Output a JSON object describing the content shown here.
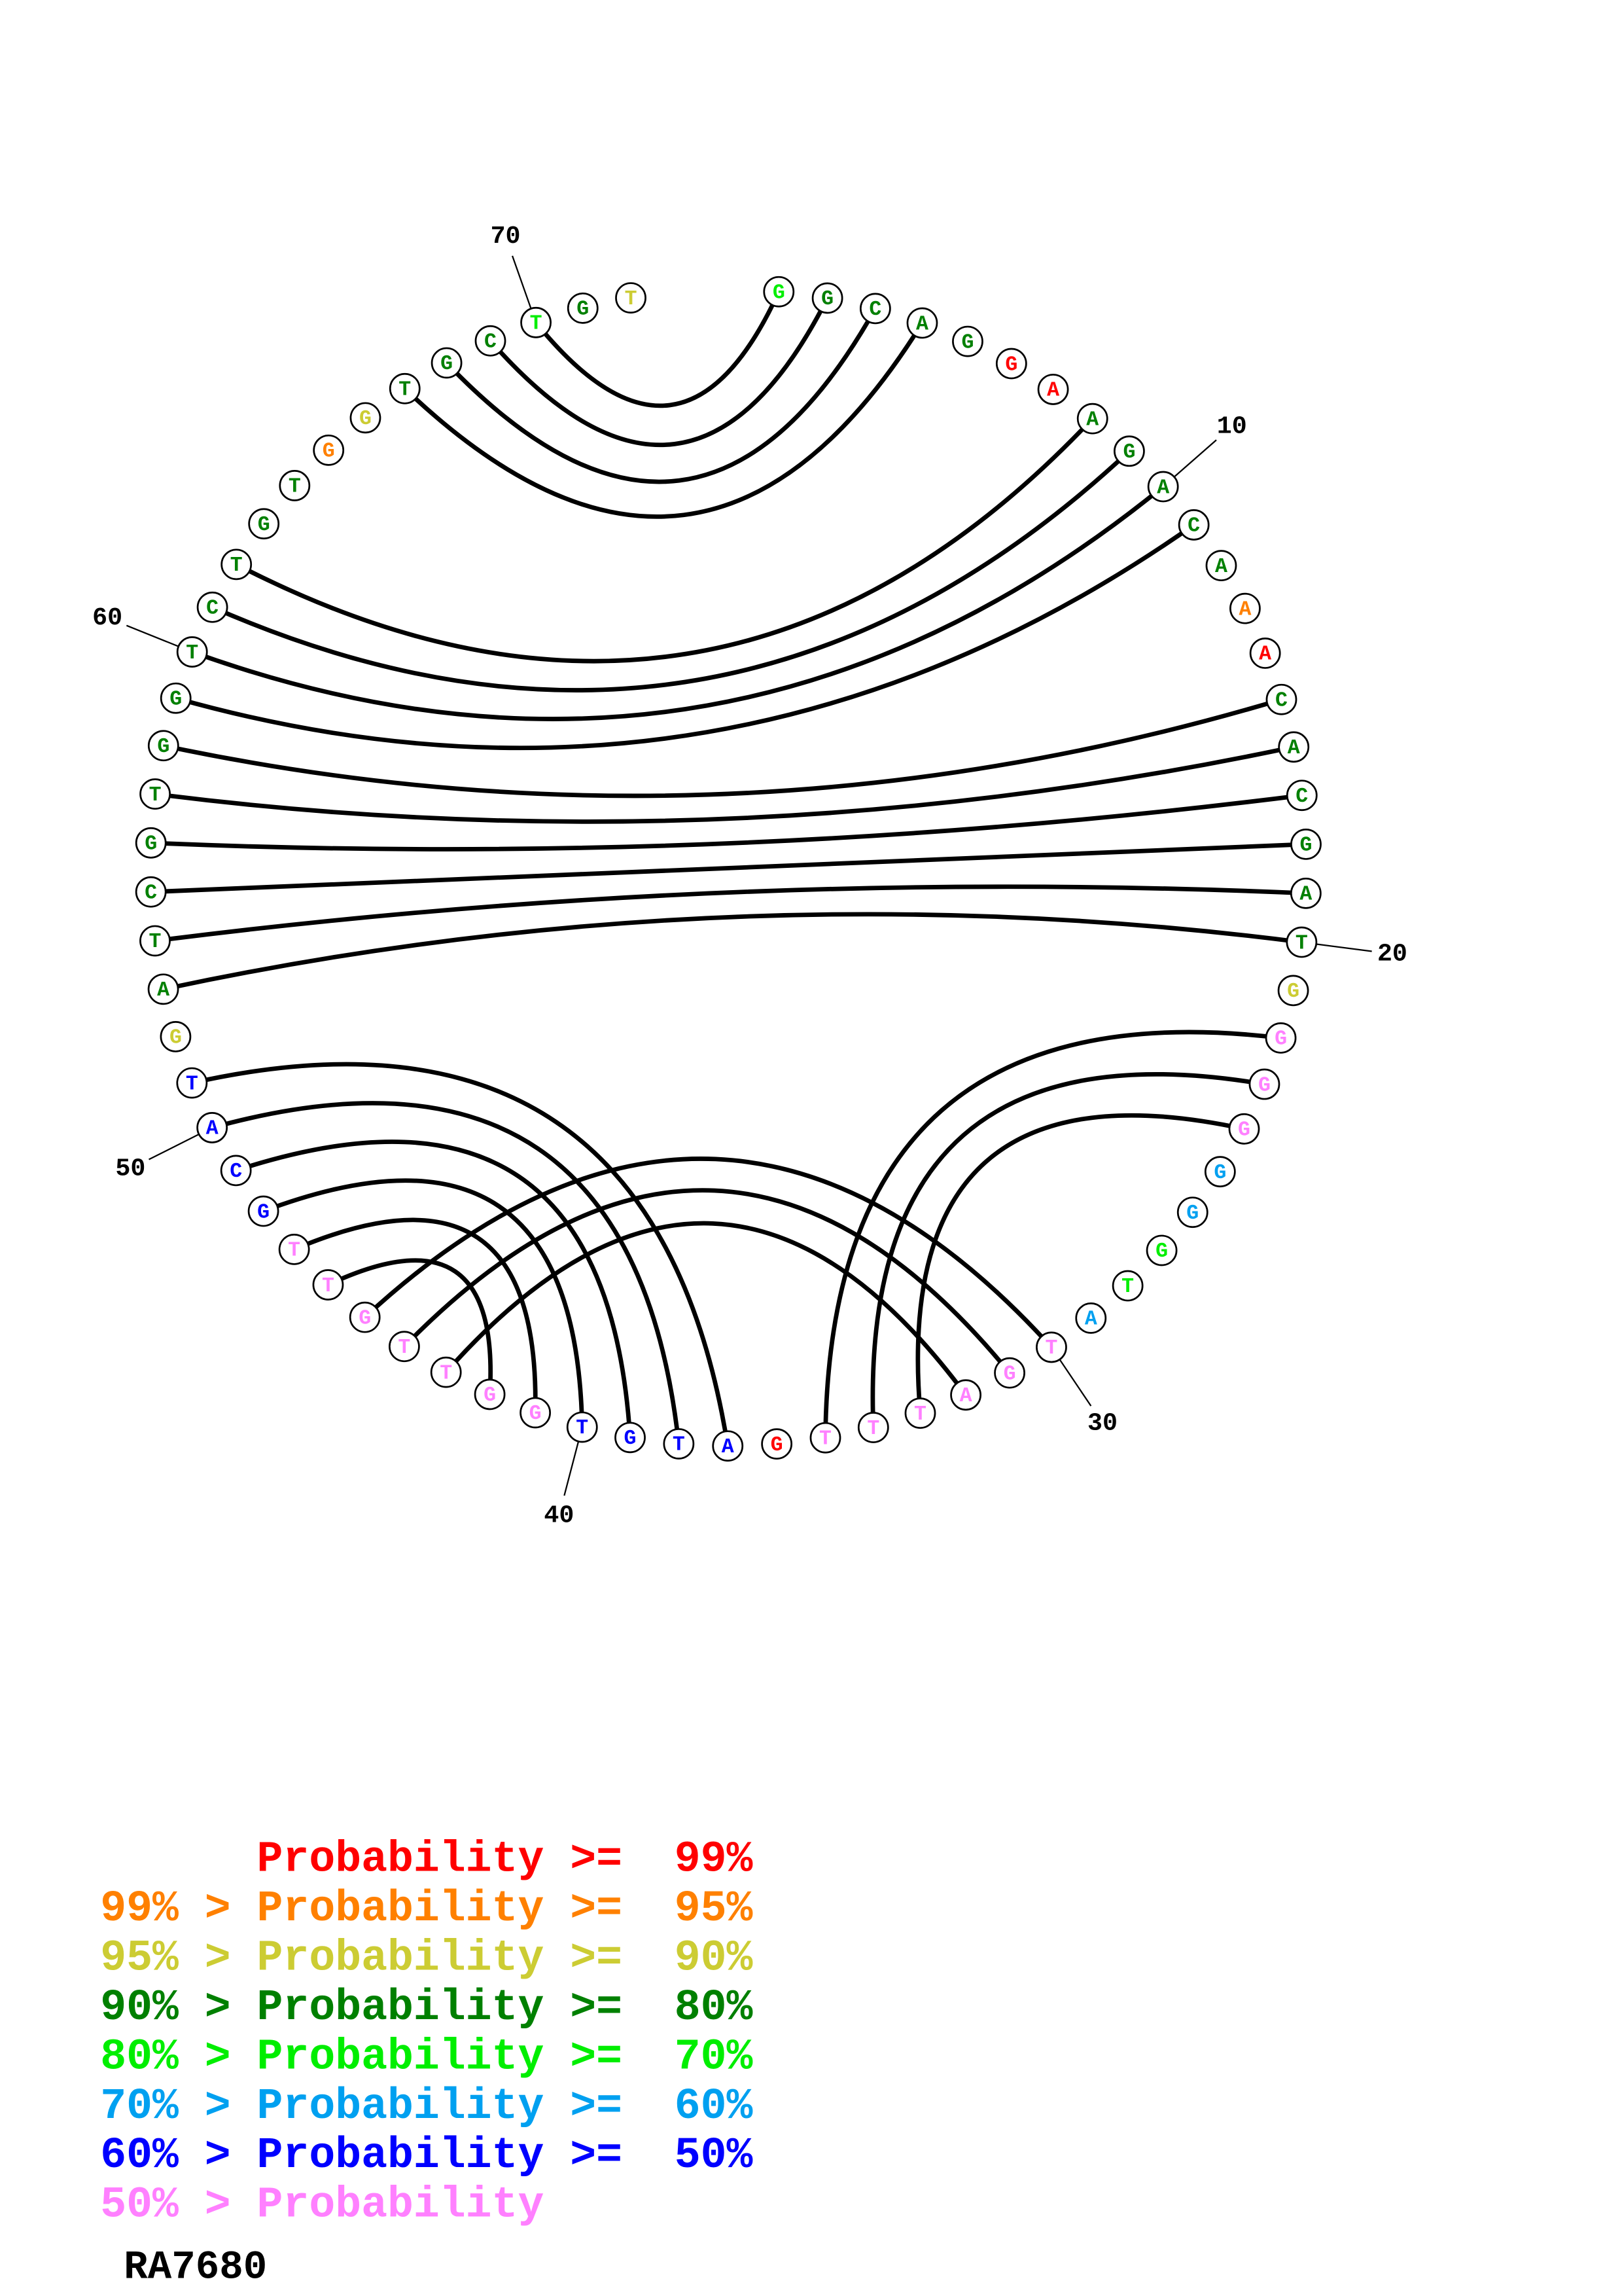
{
  "structure": {
    "sequence": [
      "G",
      "G",
      "C",
      "A",
      "G",
      "G",
      "A",
      "A",
      "G",
      "A",
      "C",
      "A",
      "A",
      "A",
      "C",
      "A",
      "C",
      "G",
      "A",
      "T",
      "G",
      "G",
      "G",
      "G",
      "G",
      "G",
      "G",
      "T",
      "A",
      "T",
      "G",
      "A",
      "T",
      "T",
      "T",
      "G",
      "A",
      "T",
      "G",
      "T",
      "G",
      "G",
      "T",
      "T",
      "G",
      "T",
      "T",
      "G",
      "C",
      "A",
      "T",
      "G",
      "A",
      "T",
      "C",
      "G",
      "T",
      "G",
      "G",
      "T",
      "C",
      "T",
      "G",
      "T",
      "G",
      "G",
      "T",
      "G",
      "C",
      "T",
      "G",
      "T"
    ],
    "probability_class": "gddddrrdddddorddddddypppccggcpppppprbbbbpppppppbbbbyddddddddddddoydddgdy",
    "pairs": [
      [
        70,
        1
      ],
      [
        69,
        2
      ],
      [
        68,
        3
      ],
      [
        67,
        4
      ],
      [
        62,
        8
      ],
      [
        61,
        9
      ],
      [
        60,
        10
      ],
      [
        59,
        11
      ],
      [
        58,
        15
      ],
      [
        57,
        16
      ],
      [
        56,
        17
      ],
      [
        55,
        18
      ],
      [
        54,
        19
      ],
      [
        53,
        20
      ],
      [
        35,
        22
      ],
      [
        34,
        23
      ],
      [
        33,
        24
      ],
      [
        51,
        37
      ],
      [
        50,
        38
      ],
      [
        49,
        39
      ],
      [
        48,
        40
      ],
      [
        47,
        41
      ],
      [
        46,
        42
      ],
      [
        45,
        30
      ],
      [
        44,
        31
      ],
      [
        43,
        32
      ]
    ],
    "position_labels": [
      "10",
      "20",
      "30",
      "40",
      "50",
      "60",
      "70"
    ]
  },
  "colors": {
    "r": "#ff0000",
    "o": "#ff8000",
    "y": "#cccc33",
    "d": "#008000",
    "g": "#00ee00",
    "c": "#00a0f0",
    "b": "#0000ff",
    "p": "#ff80ff"
  },
  "legend": [
    {
      "text": "      Probability >=  99%",
      "cls": "r"
    },
    {
      "text": "99% > Probability >=  95%",
      "cls": "o"
    },
    {
      "text": "95% > Probability >=  90%",
      "cls": "y"
    },
    {
      "text": "90% > Probability >=  80%",
      "cls": "d"
    },
    {
      "text": "80% > Probability >=  70%",
      "cls": "g"
    },
    {
      "text": "70% > Probability >=  60%",
      "cls": "c"
    },
    {
      "text": "60% > Probability >=  50%",
      "cls": "b"
    },
    {
      "text": "50% > Probability",
      "cls": "p"
    }
  ],
  "sequence_name": "RA7680"
}
